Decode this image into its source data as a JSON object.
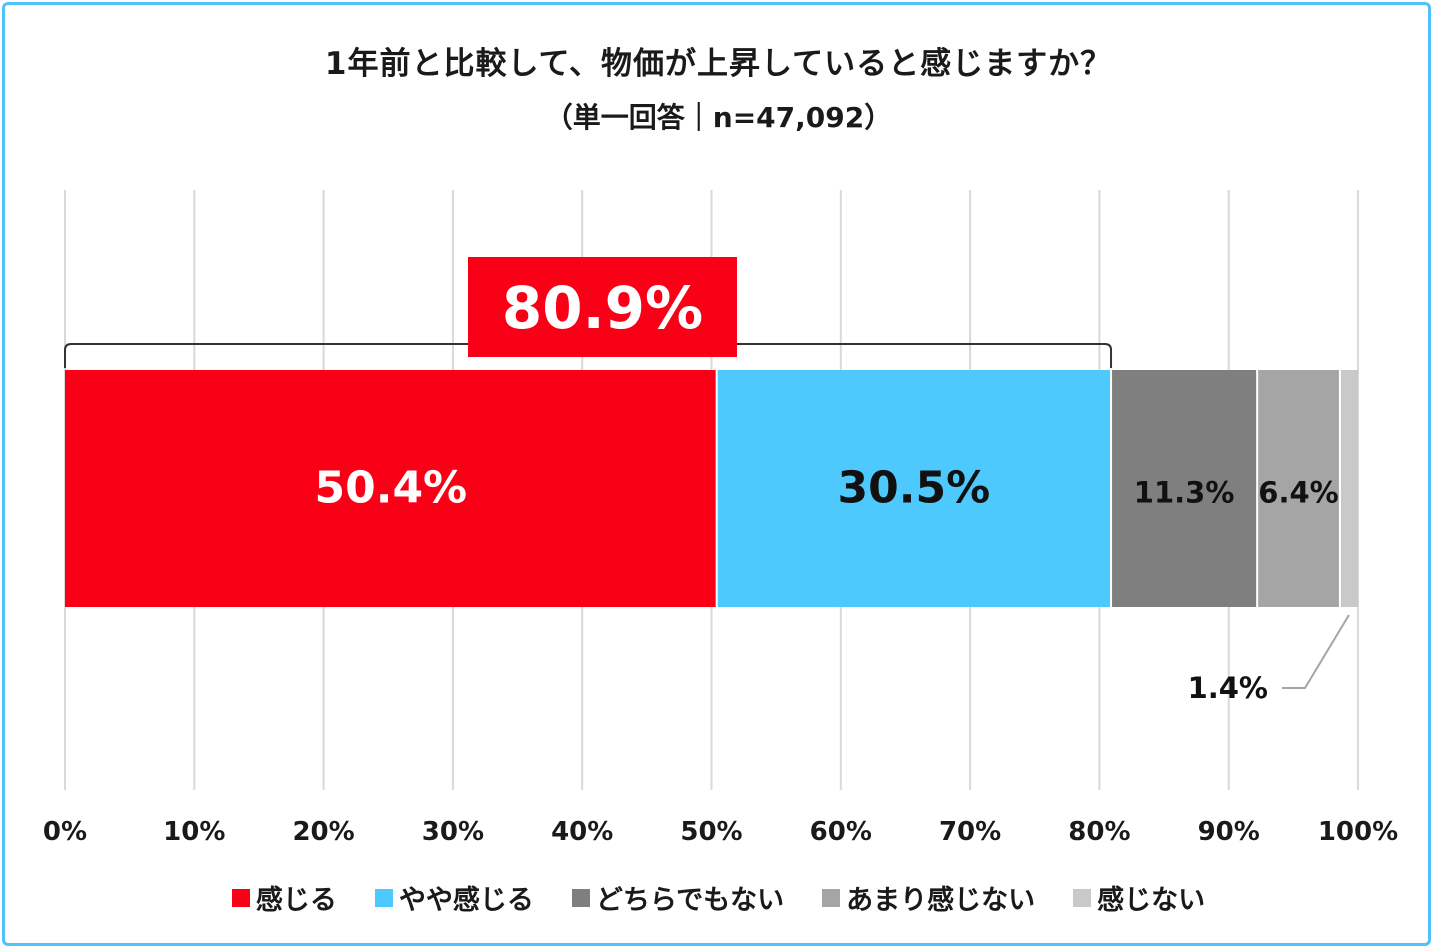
{
  "chart_data": {
    "type": "bar",
    "orientation": "horizontal-stacked",
    "title": "1年前と比較して、物価が上昇していると感じますか？",
    "subtitle": "（単一回答｜n=47,092）",
    "series": [
      {
        "name": "感じる",
        "value": 50.4,
        "label": "50.4%",
        "color": "#fa0016",
        "label_color": "#ffffff"
      },
      {
        "name": "やや感じる",
        "value": 30.5,
        "label": "30.5%",
        "color": "#4dc9fd",
        "label_color": "#111111"
      },
      {
        "name": "どちらでもない",
        "value": 11.3,
        "label": "11.3%",
        "color": "#7f7f7f",
        "label_color": "#111111"
      },
      {
        "name": "あまり感じない",
        "value": 6.4,
        "label": "6.4%",
        "color": "#a5a5a5",
        "label_color": "#111111"
      },
      {
        "name": "感じない",
        "value": 1.4,
        "label": "1.4%",
        "color": "#c9c9c9",
        "label_color": "#111111"
      }
    ],
    "callout": {
      "value": 80.9,
      "label": "80.9%",
      "color": "#fa0016"
    },
    "xlim": [
      0,
      100
    ],
    "xticks": [
      "0%",
      "10%",
      "20%",
      "30%",
      "40%",
      "50%",
      "60%",
      "70%",
      "80%",
      "90%",
      "100%"
    ],
    "grid": true,
    "legend_position": "bottom"
  }
}
